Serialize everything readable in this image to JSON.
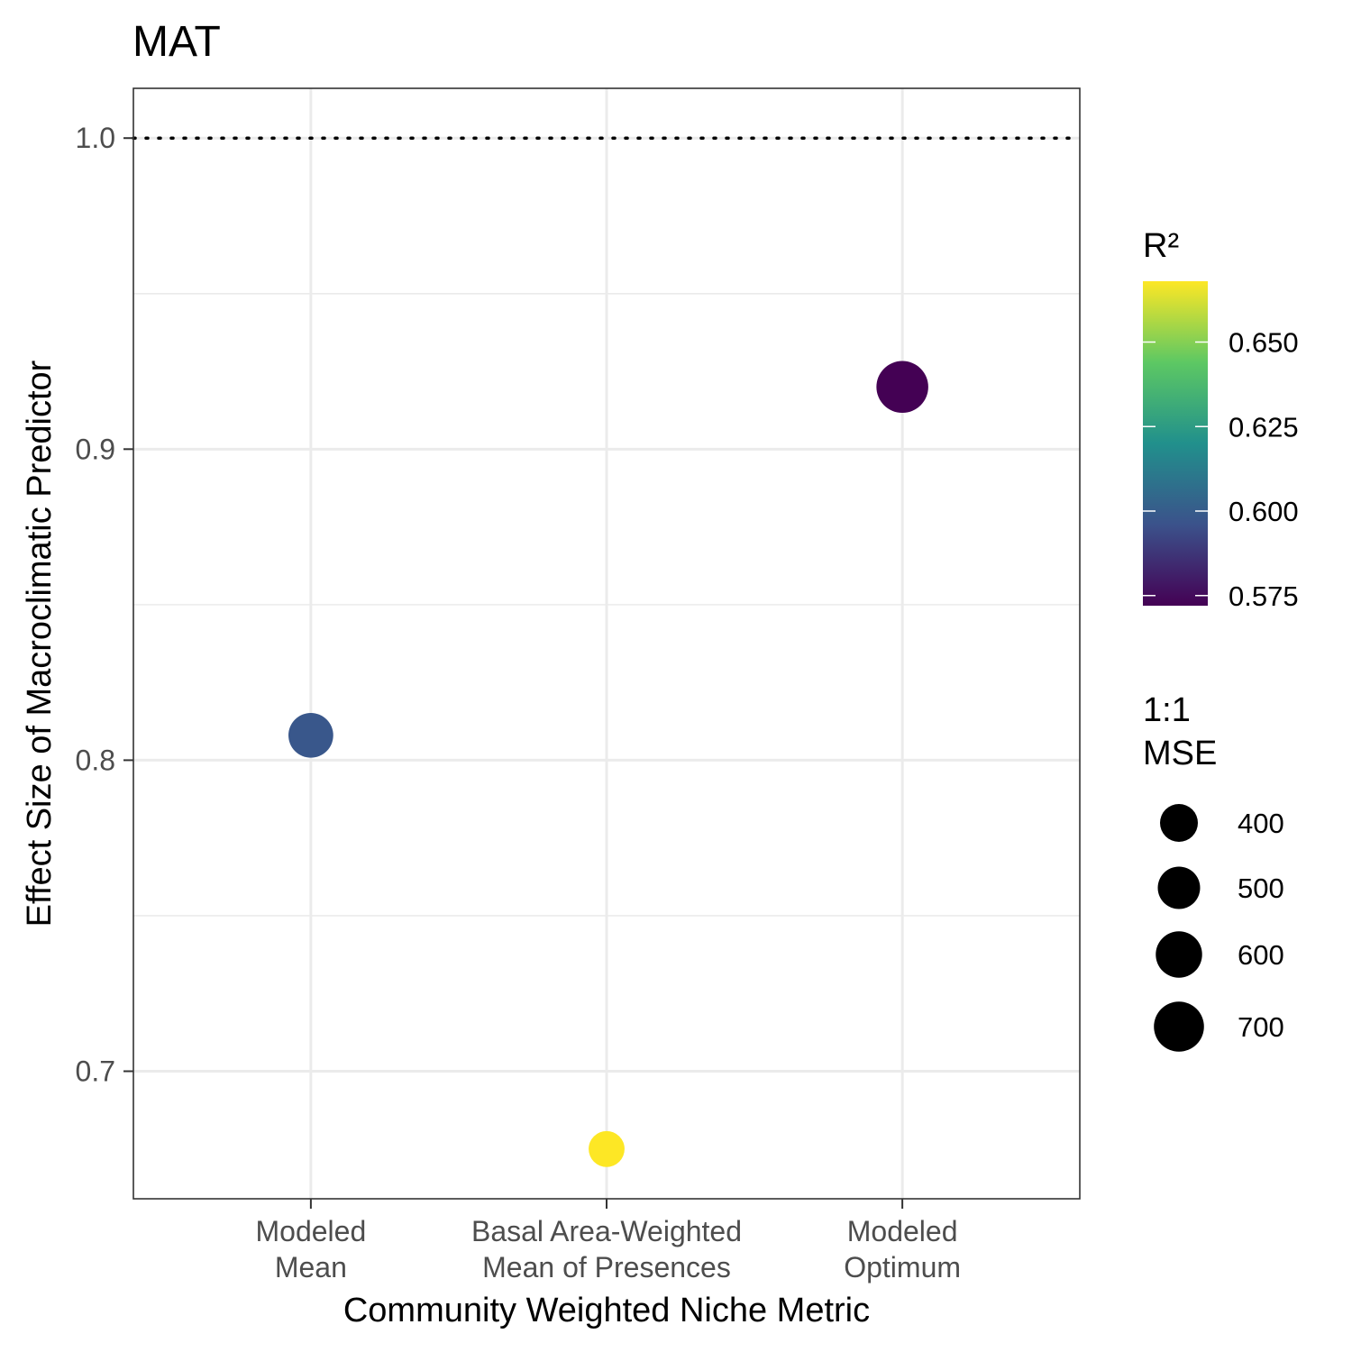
{
  "chart_data": {
    "type": "scatter",
    "title": "MAT",
    "xlabel": "Community Weighted Niche Metric",
    "ylabel": "Effect Size of Macroclimatic Predictor",
    "categories": [
      [
        "Modeled",
        "Mean"
      ],
      [
        "Basal Area-Weighted",
        "Mean of Presences"
      ],
      [
        "Modeled",
        "Optimum"
      ]
    ],
    "y_ticks": [
      "0.7",
      "0.8",
      "0.9",
      "1.0"
    ],
    "y_tick_values": [
      0.7,
      0.8,
      0.9,
      1.0
    ],
    "ylim": [
      0.659,
      1.016
    ],
    "reference_line": {
      "y": 1.0,
      "style": "dotted",
      "color": "#000000"
    },
    "points": [
      {
        "category_index": 0,
        "y": 0.808,
        "r2": 0.598,
        "mse": 560
      },
      {
        "category_index": 1,
        "y": 0.675,
        "r2": 0.668,
        "mse": 360
      },
      {
        "category_index": 2,
        "y": 0.92,
        "r2": 0.572,
        "mse": 750
      }
    ],
    "color_legend": {
      "title": "R²",
      "range": [
        0.572,
        0.668
      ],
      "ticks": [
        "0.575",
        "0.600",
        "0.625",
        "0.650"
      ],
      "tick_values": [
        0.575,
        0.6,
        0.625,
        0.65
      ],
      "palette": [
        "#440154",
        "#3b528b",
        "#21908c",
        "#5dc863",
        "#fde725"
      ]
    },
    "size_legend": {
      "title": [
        "1:1",
        "MSE"
      ],
      "entries": [
        "400",
        "500",
        "600",
        "700"
      ],
      "values": [
        400,
        500,
        600,
        700
      ],
      "color": "#000000"
    },
    "grid": true,
    "legend_position": "right"
  }
}
